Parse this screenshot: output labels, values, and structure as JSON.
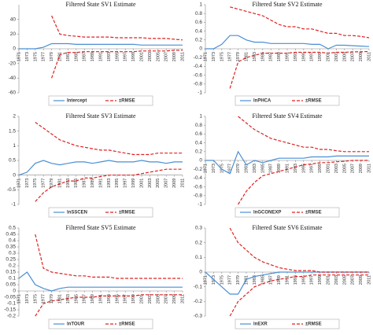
{
  "chart_data": [
    {
      "type": "line",
      "title": "Filtered State SV1 Estimate",
      "x": [
        1971,
        1973,
        1975,
        1977,
        1979,
        1981,
        1983,
        1985,
        1987,
        1989,
        1991,
        1993,
        1995,
        1997,
        1999,
        2001,
        2003,
        2005,
        2007,
        2009,
        2011
      ],
      "xticks": [
        1971,
        1973,
        1975,
        1977,
        1979,
        1981,
        1983,
        1985,
        1987,
        1989,
        1991,
        1993,
        1995,
        1997,
        1999,
        2001,
        2003,
        2005,
        2007,
        2009,
        2011
      ],
      "xlim": [
        1971,
        2011
      ],
      "ylim": [
        -60,
        60
      ],
      "yticks": [
        -60,
        -40,
        -20,
        0,
        20,
        40
      ],
      "series": [
        {
          "name": "Intercept",
          "color": "#4a8fd4",
          "values": [
            0,
            0,
            0,
            2,
            7,
            7,
            7,
            6,
            6,
            6,
            6,
            6,
            6,
            6,
            6,
            5,
            5,
            5,
            5,
            5,
            5
          ]
        },
        {
          "name": "±RMSE",
          "color": "#e02020",
          "upper": [
            null,
            null,
            null,
            null,
            45,
            20,
            18,
            17,
            16,
            16,
            16,
            16,
            15,
            15,
            15,
            15,
            14,
            14,
            14,
            13,
            12
          ],
          "lower": [
            null,
            null,
            null,
            null,
            -40,
            -8,
            -5,
            -5,
            -4,
            -4,
            -4,
            -4,
            -4,
            -4,
            -4,
            -3,
            -3,
            -3,
            -3,
            -2,
            -2
          ]
        }
      ]
    },
    {
      "type": "line",
      "title": "Filtered State SV2 Estimate",
      "x": [
        1971,
        1973,
        1975,
        1977,
        1979,
        1981,
        1983,
        1985,
        1987,
        1989,
        1991,
        1993,
        1995,
        1997,
        1999,
        2001,
        2003,
        2005,
        2007,
        2009,
        2011
      ],
      "xticks": [
        1971,
        1973,
        1975,
        1977,
        1979,
        1981,
        1983,
        1985,
        1987,
        1989,
        1991,
        1993,
        1995,
        1997,
        1999,
        2001,
        2003,
        2005,
        2007,
        2009,
        2011
      ],
      "xlim": [
        1971,
        2011
      ],
      "ylim": [
        -1,
        1
      ],
      "yticks": [
        -1,
        -0.8,
        -0.6,
        -0.4,
        -0.2,
        0,
        0.2,
        0.4,
        0.6,
        0.8,
        1
      ],
      "series": [
        {
          "name": "lnPHCA",
          "color": "#4a8fd4",
          "values": [
            0,
            0,
            0.1,
            0.3,
            0.3,
            0.2,
            0.15,
            0.15,
            0.12,
            0.12,
            0.12,
            0.12,
            0.12,
            0.1,
            0.1,
            0,
            0.08,
            0.08,
            0.07,
            0.06,
            0.05
          ]
        },
        {
          "name": "±RMSE",
          "color": "#e02020",
          "upper": [
            null,
            null,
            null,
            0.95,
            0.9,
            0.85,
            0.8,
            0.75,
            0.65,
            0.55,
            0.5,
            0.5,
            0.45,
            0.45,
            0.4,
            0.35,
            0.35,
            0.3,
            0.3,
            0.28,
            0.25
          ],
          "lower": [
            null,
            null,
            null,
            -0.9,
            -0.3,
            -0.2,
            -0.15,
            -0.1,
            -0.1,
            -0.1,
            -0.1,
            -0.08,
            -0.08,
            -0.08,
            -0.08,
            -0.1,
            -0.08,
            -0.08,
            -0.07,
            -0.07,
            -0.06
          ]
        }
      ]
    },
    {
      "type": "line",
      "title": "Filtered State SV3 Estimate",
      "x": [
        1971,
        1973,
        1975,
        1977,
        1979,
        1981,
        1983,
        1985,
        1987,
        1989,
        1991,
        1993,
        1995,
        1997,
        1999,
        2001,
        2003,
        2005,
        2007,
        2009,
        2011
      ],
      "xticks": [
        1971,
        1973,
        1975,
        1977,
        1979,
        1981,
        1983,
        1985,
        1987,
        1989,
        1991,
        1993,
        1995,
        1997,
        1999,
        2001,
        2003,
        2005,
        2007,
        2009,
        2011
      ],
      "xlim": [
        1971,
        2011
      ],
      "ylim": [
        -1,
        2
      ],
      "yticks": [
        -1,
        -0.5,
        0,
        0.5,
        1,
        1.5,
        2
      ],
      "series": [
        {
          "name": "lnSSCEN",
          "color": "#4a8fd4",
          "values": [
            0,
            0.1,
            0.4,
            0.5,
            0.4,
            0.35,
            0.4,
            0.45,
            0.45,
            0.4,
            0.45,
            0.5,
            0.45,
            0.45,
            0.45,
            0.5,
            0.45,
            0.45,
            0.4,
            0.45,
            0.45
          ]
        },
        {
          "name": "±RMSE",
          "color": "#e02020",
          "upper": [
            null,
            null,
            1.8,
            1.6,
            1.4,
            1.2,
            1.1,
            1,
            0.95,
            0.9,
            0.85,
            0.85,
            0.8,
            0.75,
            0.7,
            0.7,
            0.7,
            0.75,
            0.75,
            0.75,
            0.75
          ],
          "lower": [
            null,
            null,
            -0.9,
            -0.6,
            -0.4,
            -0.3,
            -0.2,
            -0.2,
            -0.1,
            -0.1,
            -0.05,
            0,
            0,
            0,
            0,
            0.05,
            0.1,
            0.15,
            0.2,
            0.2,
            0.2
          ]
        }
      ]
    },
    {
      "type": "line",
      "title": "Filtered State SV4 Estimate",
      "x": [
        1971,
        1973,
        1975,
        1977,
        1979,
        1981,
        1983,
        1985,
        1987,
        1989,
        1991,
        1993,
        1995,
        1997,
        1999,
        2001,
        2003,
        2005,
        2007,
        2009,
        2011
      ],
      "xticks": [
        1971,
        1973,
        1975,
        1977,
        1979,
        1981,
        1983,
        1985,
        1987,
        1989,
        1991,
        1993,
        1995,
        1997,
        1999,
        2001,
        2003,
        2005,
        2007,
        2009,
        2011
      ],
      "xlim": [
        1971,
        2011
      ],
      "ylim": [
        -1,
        1
      ],
      "yticks": [
        -1,
        -0.8,
        -0.6,
        -0.4,
        -0.2,
        0,
        0.2,
        0.4,
        0.6,
        0.8,
        1
      ],
      "series": [
        {
          "name": "lnGCONEXP",
          "color": "#4a8fd4",
          "values": [
            0,
            0,
            -0.2,
            -0.3,
            0.2,
            -0.1,
            0,
            -0.05,
            0,
            0.05,
            0.05,
            0.05,
            0.05,
            0.08,
            0.08,
            0.08,
            0.1,
            0.1,
            0.1,
            0.1,
            0.1
          ]
        },
        {
          "name": "±RMSE",
          "color": "#e02020",
          "upper": [
            null,
            null,
            null,
            null,
            1,
            0.85,
            0.7,
            0.6,
            0.5,
            0.45,
            0.4,
            0.35,
            0.3,
            0.3,
            0.25,
            0.25,
            0.22,
            0.2,
            0.2,
            0.2,
            0.2
          ],
          "lower": [
            null,
            null,
            null,
            null,
            -1,
            -0.7,
            -0.5,
            -0.35,
            -0.3,
            -0.25,
            -0.2,
            -0.15,
            -0.1,
            -0.08,
            -0.05,
            -0.05,
            -0.03,
            -0.02,
            0,
            0,
            0
          ]
        }
      ]
    },
    {
      "type": "line",
      "title": "Filtered State SV5 Estimate",
      "x": [
        1971,
        1973,
        1975,
        1977,
        1979,
        1981,
        1983,
        1985,
        1987,
        1989,
        1991,
        1993,
        1995,
        1997,
        1999,
        2001,
        2003,
        2005,
        2007,
        2009,
        2011
      ],
      "xticks": [
        1971,
        1973,
        1975,
        1977,
        1979,
        1981,
        1983,
        1985,
        1987,
        1989,
        1991,
        1993,
        1995,
        1997,
        1999,
        2001,
        2003,
        2005,
        2007,
        2009,
        2011
      ],
      "xlim": [
        1971,
        2011
      ],
      "ylim": [
        -0.2,
        0.5
      ],
      "yticks": [
        -0.2,
        -0.15,
        -0.1,
        -0.05,
        0,
        0.05,
        0.1,
        0.15,
        0.2,
        0.25,
        0.3,
        0.35,
        0.4,
        0.45,
        0.5
      ],
      "series": [
        {
          "name": "lnTOUR",
          "color": "#4a8fd4",
          "values": [
            0.1,
            0.15,
            0.05,
            0.02,
            0,
            0.02,
            0.03,
            0.03,
            0.03,
            0.03,
            0.03,
            0.03,
            0.03,
            0.03,
            0.03,
            0.03,
            0.03,
            0.03,
            0.03,
            0.03,
            0.03
          ]
        },
        {
          "name": "±RMSE",
          "color": "#e02020",
          "upper": [
            null,
            null,
            0.45,
            0.18,
            0.15,
            0.14,
            0.13,
            0.12,
            0.12,
            0.11,
            0.11,
            0.11,
            0.1,
            0.1,
            0.1,
            0.1,
            0.1,
            0.1,
            0.1,
            0.1,
            0.1
          ],
          "lower": [
            null,
            null,
            -0.2,
            -0.1,
            -0.08,
            -0.07,
            -0.06,
            -0.05,
            -0.05,
            -0.05,
            -0.04,
            -0.04,
            -0.04,
            -0.04,
            -0.04,
            -0.03,
            -0.03,
            -0.03,
            -0.03,
            -0.03,
            -0.03
          ]
        }
      ]
    },
    {
      "type": "line",
      "title": "Filtered State SV6 Estimate",
      "x": [
        1971,
        1973,
        1975,
        1977,
        1979,
        1981,
        1983,
        1985,
        1987,
        1989,
        1991,
        1993,
        1995,
        1997,
        1999,
        2001,
        2003,
        2005,
        2007,
        2009,
        2011
      ],
      "xticks": [
        1971,
        1973,
        1975,
        1977,
        1979,
        1981,
        1983,
        1985,
        1987,
        1989,
        1991,
        1993,
        1995,
        1997,
        1999,
        2001,
        2003,
        2005,
        2007,
        2009,
        2011
      ],
      "xlim": [
        1971,
        2011
      ],
      "ylim": [
        -0.3,
        0.3
      ],
      "yticks": [
        -0.3,
        -0.2,
        -0.1,
        0,
        0.1,
        0.2,
        0.3
      ],
      "series": [
        {
          "name": "lnEXR",
          "color": "#4a8fd4",
          "values": [
            0,
            -0.05,
            -0.1,
            -0.15,
            -0.15,
            -0.05,
            -0.03,
            -0.02,
            -0.01,
            0,
            0,
            0,
            0,
            0,
            0,
            0,
            0,
            0,
            0,
            0,
            0
          ]
        },
        {
          "name": "±RMSE",
          "color": "#e02020",
          "upper": [
            null,
            null,
            null,
            0.3,
            0.2,
            0.15,
            0.1,
            0.07,
            0.05,
            0.03,
            0.02,
            0.01,
            0.01,
            0.01,
            0,
            0,
            0,
            0,
            0,
            0,
            0
          ],
          "lower": [
            null,
            null,
            null,
            -0.3,
            -0.2,
            -0.15,
            -0.1,
            -0.08,
            -0.06,
            -0.05,
            -0.04,
            -0.03,
            -0.03,
            -0.02,
            -0.02,
            -0.02,
            -0.02,
            -0.02,
            -0.02,
            -0.02,
            -0.02
          ]
        }
      ]
    }
  ]
}
